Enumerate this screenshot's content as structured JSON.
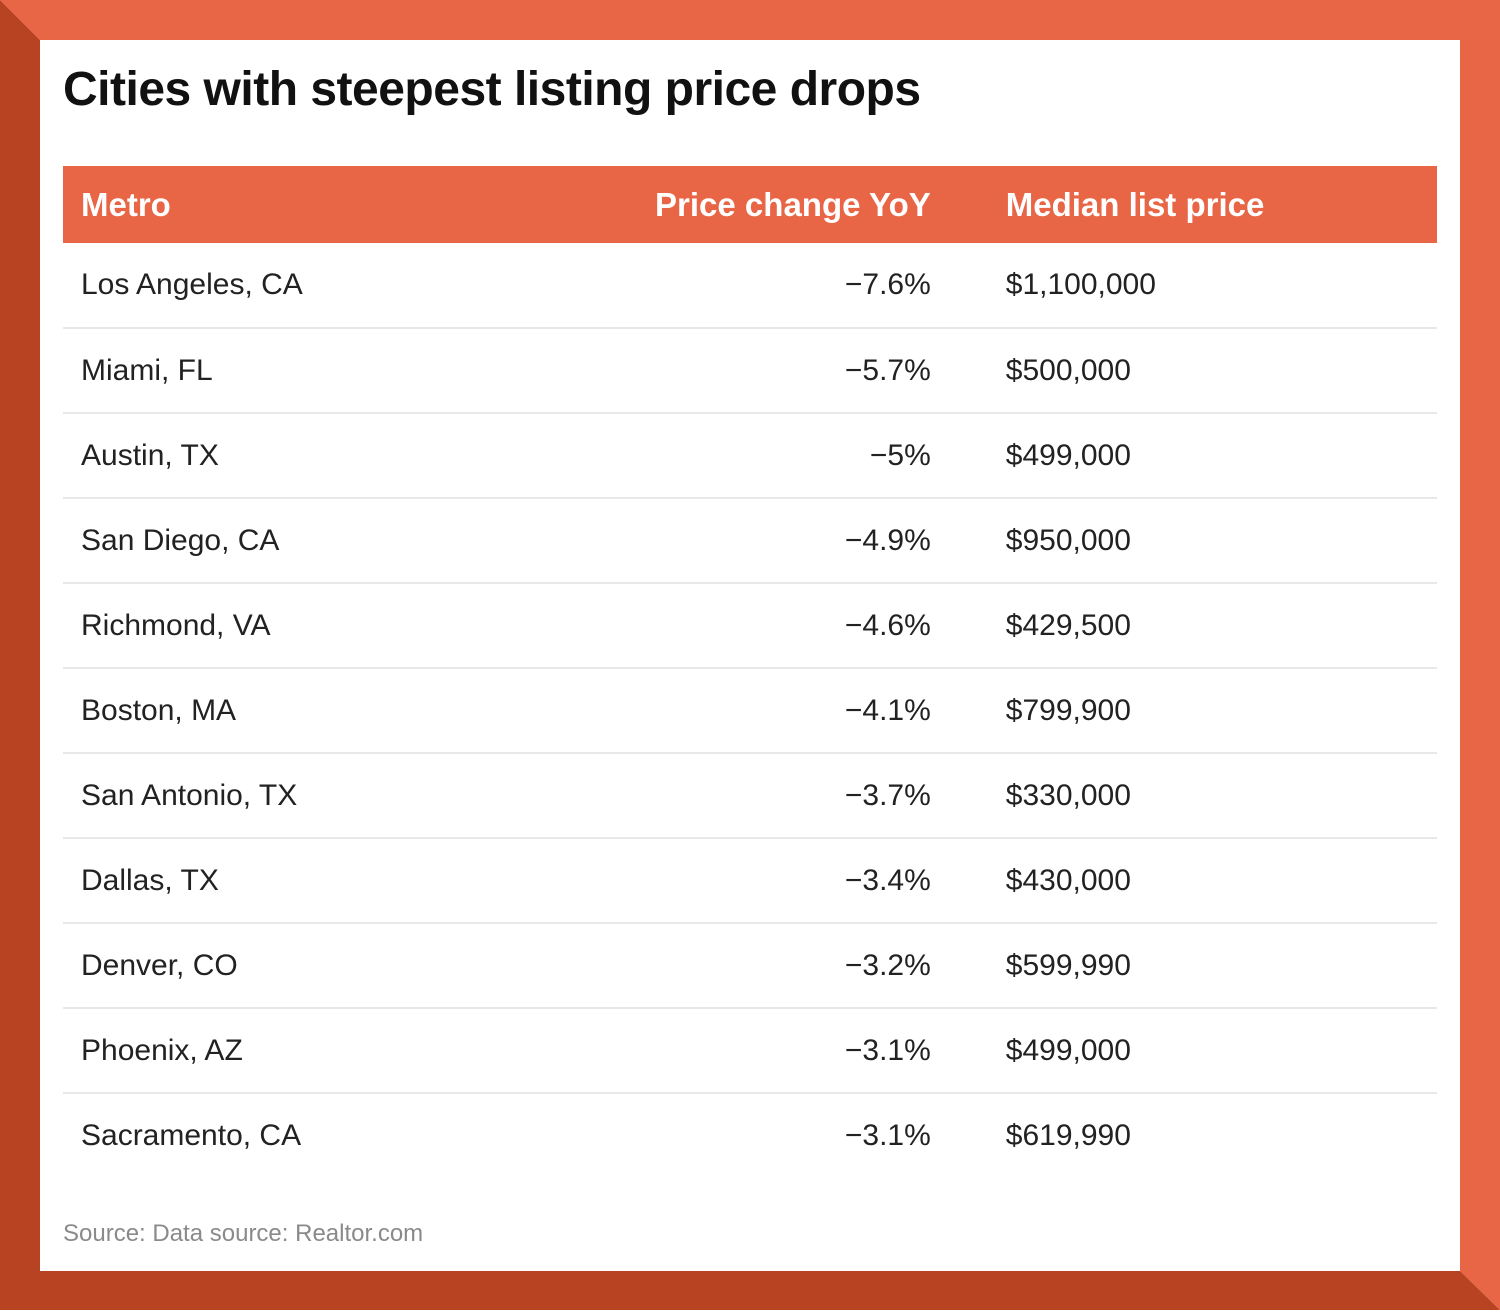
{
  "title": "Cities with steepest listing price drops",
  "colors": {
    "frame_light": "#E86646",
    "frame_dark": "#B84322",
    "header_bg": "#E86646"
  },
  "table": {
    "headers": [
      "Metro",
      "Price change YoY",
      "Median list price"
    ],
    "rows": [
      [
        "Los Angeles, CA",
        "−7.6%",
        "$1,100,000"
      ],
      [
        "Miami, FL",
        "−5.7%",
        "$500,000"
      ],
      [
        "Austin, TX",
        "−5%",
        "$499,000"
      ],
      [
        "San Diego, CA",
        "−4.9%",
        "$950,000"
      ],
      [
        "Richmond, VA",
        "−4.6%",
        "$429,500"
      ],
      [
        "Boston, MA",
        "−4.1%",
        "$799,900"
      ],
      [
        "San Antonio, TX",
        "−3.7%",
        "$330,000"
      ],
      [
        "Dallas, TX",
        "−3.4%",
        "$430,000"
      ],
      [
        "Denver, CO",
        "−3.2%",
        "$599,990"
      ],
      [
        "Phoenix, AZ",
        "−3.1%",
        "$499,000"
      ],
      [
        "Sacramento, CA",
        "−3.1%",
        "$619,990"
      ]
    ]
  },
  "source": "Source: Data source: Realtor.com"
}
